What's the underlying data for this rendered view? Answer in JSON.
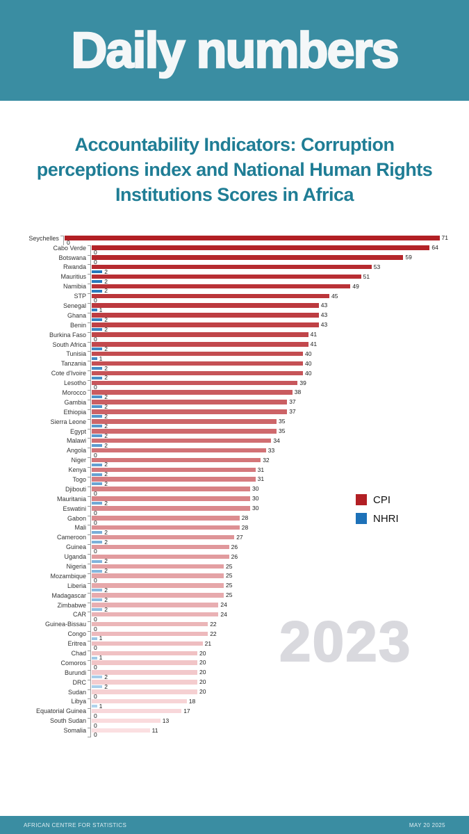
{
  "header": {
    "title": "Daily numbers"
  },
  "title": "Accountability Indicators: Corruption perceptions index  and National Human Rights Institutions Scores in Africa",
  "watermark_year": "2023",
  "legend": {
    "items": [
      {
        "label": "CPI",
        "color": "#b21f24"
      },
      {
        "label": "NHRI",
        "color": "#1d71b8"
      }
    ]
  },
  "footer": {
    "left": "AFRICAN CENTRE FOR STATISTICS",
    "right": "MAY 20 2025"
  },
  "colors": {
    "banner_bg": "#3a8da2",
    "title_text": "#1f7d95",
    "cpi_gradient_start": "#b21f24",
    "cpi_gradient_end": "#fbdfe1",
    "nhri_gradient_start": "#1d71b8",
    "nhri_gradient_end": "#b9d9ef",
    "watermark": "#d9d9de",
    "axis": "#9a9a9a"
  },
  "chart_data": {
    "type": "bar",
    "orientation": "horizontal",
    "title": "Accountability Indicators: Corruption perceptions index and National Human Rights Institutions Scores in Africa",
    "xlabel": "",
    "ylabel": "",
    "xlim": [
      0,
      75
    ],
    "grid": false,
    "legend_position": "center-right",
    "categories": [
      "Seychelles",
      "Cabo Verde",
      "Botswana",
      "Rwanda",
      "Mauritius",
      "Namibia",
      "STP",
      "Senegal",
      "Ghana",
      "Benin",
      "Burkina Faso",
      "South Africa",
      "Tunisia",
      "Tanzania",
      "Cote d'Ivoire",
      "Lesotho",
      "Morocco",
      "Gambia",
      "Ethiopia",
      "Sierra Leone",
      "Egypt",
      "Malawi",
      "Angola",
      "Niger",
      "Kenya",
      "Togo",
      "Djibouti",
      "Mauritania",
      "Eswatini",
      "Gabon",
      "Mali",
      "Cameroon",
      "Guinea",
      "Uganda",
      "Nigeria",
      "Mozambique",
      "Liberia",
      "Madagascar",
      "Zimbabwe",
      "CAR",
      "Guinea-Bissau",
      "Congo",
      "Eritrea",
      "Chad",
      "Comoros",
      "Burundi",
      "DRC",
      "Sudan",
      "Libya",
      "Equatorial Guinea",
      "South Sudan",
      "Somalia"
    ],
    "series": [
      {
        "name": "CPI",
        "values": [
          71,
          64,
          59,
          53,
          51,
          49,
          45,
          43,
          43,
          43,
          41,
          41,
          40,
          40,
          40,
          39,
          38,
          37,
          37,
          35,
          35,
          34,
          33,
          32,
          31,
          31,
          30,
          30,
          30,
          28,
          28,
          27,
          26,
          26,
          25,
          25,
          25,
          25,
          24,
          24,
          22,
          22,
          21,
          20,
          20,
          20,
          20,
          20,
          18,
          17,
          13,
          11
        ]
      },
      {
        "name": "NHRI",
        "values": [
          0,
          0,
          0,
          2,
          2,
          2,
          0,
          1,
          2,
          2,
          0,
          2,
          1,
          2,
          2,
          0,
          2,
          2,
          2,
          2,
          2,
          2,
          0,
          2,
          2,
          2,
          0,
          2,
          0,
          0,
          2,
          2,
          0,
          2,
          2,
          0,
          2,
          2,
          2,
          0,
          0,
          1,
          0,
          1,
          0,
          2,
          2,
          0,
          1,
          0,
          0,
          0
        ]
      }
    ]
  }
}
